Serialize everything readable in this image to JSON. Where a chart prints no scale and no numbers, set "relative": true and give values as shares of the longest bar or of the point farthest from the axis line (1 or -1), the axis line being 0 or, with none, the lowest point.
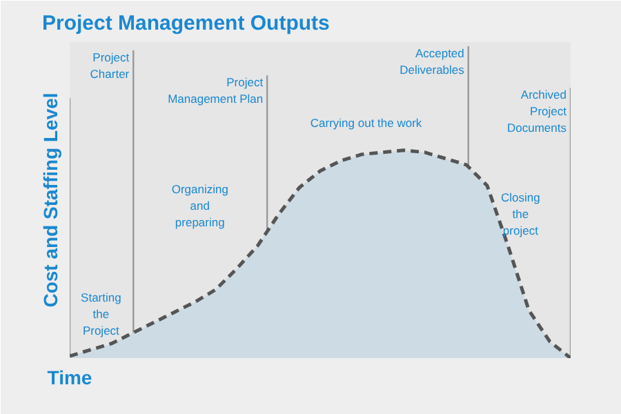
{
  "chart_data": {
    "type": "line",
    "title": "Project Management Outputs",
    "xlabel": "Time",
    "ylabel": "Cost and Staffing Level",
    "relative": true,
    "line_style": "dashed",
    "categories": [
      null,
      null,
      null,
      null,
      null,
      null,
      null,
      null,
      null,
      null,
      null,
      null,
      null,
      null,
      null,
      null,
      null,
      null,
      null,
      null,
      null,
      null,
      null,
      null,
      null
    ],
    "series": [
      {
        "color": "#555555",
        "values": [
          0.01,
          0.04,
          0.07,
          0.12,
          0.17,
          0.22,
          0.27,
          0.33,
          0.43,
          0.54,
          0.69,
          0.82,
          0.9,
          0.95,
          0.98,
          0.99,
          1.0,
          0.99,
          0.96,
          0.93,
          0.83,
          0.54,
          0.23,
          0.08,
          0.0
        ]
      }
    ],
    "annotations": [
      "Project Charter",
      "Project Management Plan",
      "Accepted Deliverables",
      "Archived Project Documents",
      "Starting the Project",
      "Organizing and preparing",
      "Carrying out the work",
      "Closing the project"
    ]
  }
}
